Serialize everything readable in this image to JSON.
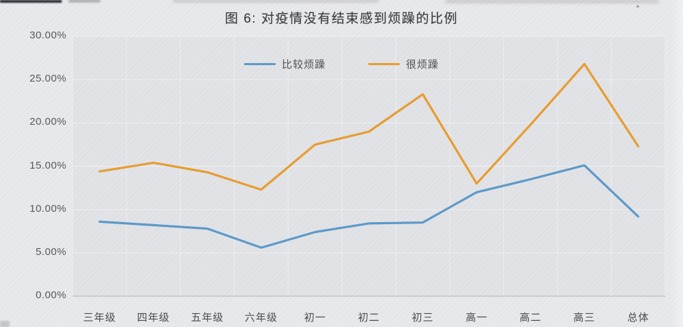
{
  "colors": {
    "page_bg": "#e9ebee",
    "plot_bg": "#e3e5e8",
    "grid": "#f0f1f3",
    "axis": "#c2c5c9",
    "title_text": "#3b3c3e",
    "tick_text": "#55585c"
  },
  "chart_data": {
    "type": "line",
    "title": "图 6: 对疫情没有结束感到烦躁的比例",
    "categories": [
      "三年级",
      "四年级",
      "五年级",
      "六年级",
      "初一",
      "初二",
      "初三",
      "高一",
      "高二",
      "高三",
      "总体"
    ],
    "series": [
      {
        "name": "比较烦躁",
        "color": "#5b99cc",
        "values": [
          8.6,
          8.2,
          7.8,
          5.6,
          7.4,
          8.4,
          8.5,
          12.0,
          13.5,
          15.1,
          9.2
        ]
      },
      {
        "name": "很烦躁",
        "color": "#eb9c2d",
        "values": [
          14.4,
          15.4,
          14.3,
          12.3,
          17.5,
          19.0,
          23.3,
          13.0,
          19.8,
          26.8,
          17.3
        ]
      }
    ],
    "ylim": [
      0,
      30
    ],
    "ytick_step": 5,
    "ytick_labels": [
      "30.00%",
      "25.00%",
      "20.00%",
      "15.00%",
      "10.00%",
      "5.00%",
      "0.00%"
    ],
    "grid": true,
    "legend_position": "top-center"
  }
}
